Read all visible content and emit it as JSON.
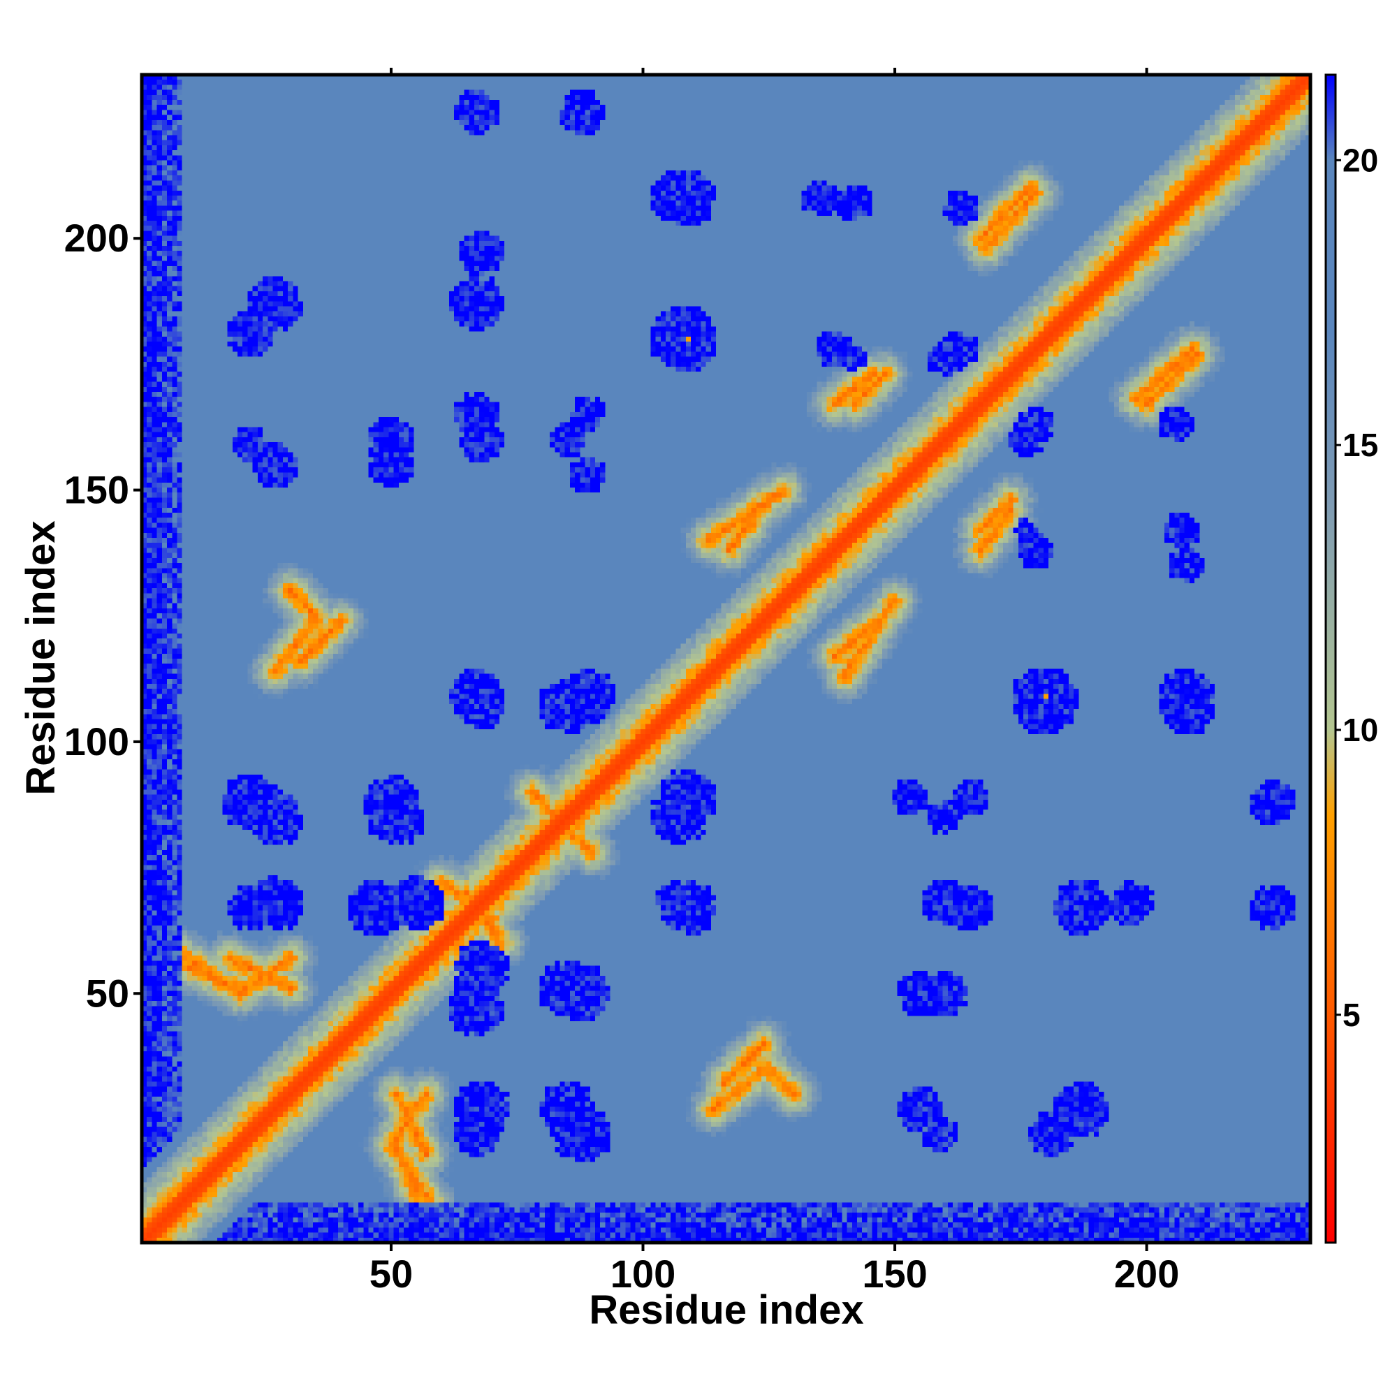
{
  "chart_data": {
    "type": "heatmap",
    "title": "",
    "xlabel": "Residue index",
    "ylabel": "Residue index",
    "xlim": [
      1,
      232
    ],
    "ylim": [
      1,
      232
    ],
    "n_residues": 232,
    "x_ticks": [
      50,
      100,
      150,
      200
    ],
    "y_ticks": [
      50,
      100,
      150,
      200
    ],
    "x_tick_labels": [
      "50",
      "100",
      "150",
      "200"
    ],
    "y_tick_labels": [
      "50",
      "100",
      "150",
      "200"
    ],
    "colorbar": {
      "range": [
        1,
        21.5
      ],
      "ticks": [
        5,
        10,
        15,
        20
      ],
      "tick_labels": [
        "5",
        "10",
        "15",
        "20"
      ],
      "stops": [
        {
          "value": 1,
          "color": "#ff0000"
        },
        {
          "value": 5,
          "color": "#ff5a00"
        },
        {
          "value": 8.5,
          "color": "#ffa000"
        },
        {
          "value": 10,
          "color": "#b4c690"
        },
        {
          "value": 14,
          "color": "#7e9bb4"
        },
        {
          "value": 17,
          "color": "#5a86bd"
        },
        {
          "value": 20,
          "color": "#5a86bd"
        },
        {
          "value": 21.5,
          "color": "#0000ff"
        }
      ]
    },
    "colors": {
      "diagonal": "#ff0000",
      "contact": "#ffa000",
      "near": "#b4c690",
      "background": "#5a86bd",
      "far": "#0000ff"
    },
    "approx_features": {
      "contact_lines": [
        {
          "from": [
            8,
            58
          ],
          "to": [
            20,
            50
          ]
        },
        {
          "from": [
            20,
            50
          ],
          "to": [
            30,
            57
          ]
        },
        {
          "from": [
            51,
            30
          ],
          "to": [
            57,
            18
          ]
        },
        {
          "from": [
            55,
            10
          ],
          "to": [
            51,
            20
          ]
        },
        {
          "from": [
            32,
            116
          ],
          "to": [
            40,
            124
          ]
        },
        {
          "from": [
            65,
            70
          ],
          "to": [
            72,
            60
          ]
        },
        {
          "from": [
            82,
            85
          ],
          "to": [
            90,
            78
          ]
        },
        {
          "from": [
            113,
            140
          ],
          "to": [
            128,
            150
          ]
        },
        {
          "from": [
            138,
            117
          ],
          "to": [
            148,
            125
          ]
        },
        {
          "from": [
            138,
            167
          ],
          "to": [
            146,
            173
          ]
        },
        {
          "from": [
            167,
            142
          ],
          "to": [
            173,
            148
          ]
        },
        {
          "from": [
            167,
            200
          ],
          "to": [
            177,
            210
          ]
        },
        {
          "from": [
            198,
            168
          ],
          "to": [
            209,
            178
          ]
        },
        {
          "from": [
            114,
            27
          ],
          "to": [
            124,
            35
          ]
        },
        {
          "from": [
            125,
            35
          ],
          "to": [
            130,
            30
          ]
        }
      ],
      "far_blobs": [
        {
          "x": 22,
          "y": 88,
          "r": 5
        },
        {
          "x": 50,
          "y": 88,
          "r": 5
        },
        {
          "x": 22,
          "y": 67,
          "r": 4
        },
        {
          "x": 47,
          "y": 67,
          "r": 5
        },
        {
          "x": 68,
          "y": 55,
          "r": 5
        },
        {
          "x": 85,
          "y": 51,
          "r": 5
        },
        {
          "x": 68,
          "y": 27,
          "r": 5
        },
        {
          "x": 85,
          "y": 27,
          "r": 5
        },
        {
          "x": 68,
          "y": 107,
          "r": 4
        },
        {
          "x": 85,
          "y": 107,
          "r": 5
        },
        {
          "x": 22,
          "y": 159,
          "r": 3
        },
        {
          "x": 50,
          "y": 160,
          "r": 4
        },
        {
          "x": 68,
          "y": 160,
          "r": 4
        },
        {
          "x": 85,
          "y": 160,
          "r": 3
        },
        {
          "x": 22,
          "y": 181,
          "r": 4
        },
        {
          "x": 68,
          "y": 197,
          "r": 4
        },
        {
          "x": 109,
          "y": 179,
          "r": 5
        },
        {
          "x": 109,
          "y": 208,
          "r": 5
        },
        {
          "x": 109,
          "y": 89,
          "r": 5
        },
        {
          "x": 109,
          "y": 67,
          "r": 5
        },
        {
          "x": 165,
          "y": 89,
          "r": 3
        },
        {
          "x": 165,
          "y": 67,
          "r": 4
        },
        {
          "x": 180,
          "y": 108,
          "r": 6
        },
        {
          "x": 208,
          "y": 107,
          "r": 5
        },
        {
          "x": 187,
          "y": 67,
          "r": 5
        },
        {
          "x": 187,
          "y": 27,
          "r": 5
        },
        {
          "x": 155,
          "y": 27,
          "r": 4
        },
        {
          "x": 155,
          "y": 50,
          "r": 4
        },
        {
          "x": 135,
          "y": 208,
          "r": 3
        },
        {
          "x": 138,
          "y": 178,
          "r": 3
        },
        {
          "x": 163,
          "y": 178,
          "r": 3
        },
        {
          "x": 176,
          "y": 160,
          "r": 3
        },
        {
          "x": 176,
          "y": 142,
          "r": 2
        },
        {
          "x": 206,
          "y": 163,
          "r": 3
        },
        {
          "x": 207,
          "y": 142,
          "r": 3
        },
        {
          "x": 225,
          "y": 88,
          "r": 4
        },
        {
          "x": 225,
          "y": 67,
          "r": 4
        },
        {
          "x": 153,
          "y": 89,
          "r": 3
        }
      ],
      "special_points": [
        {
          "x": 109,
          "y": 180,
          "color": "#ffa000"
        },
        {
          "x": 180,
          "y": 109,
          "color": "#ffa000"
        }
      ]
    }
  }
}
